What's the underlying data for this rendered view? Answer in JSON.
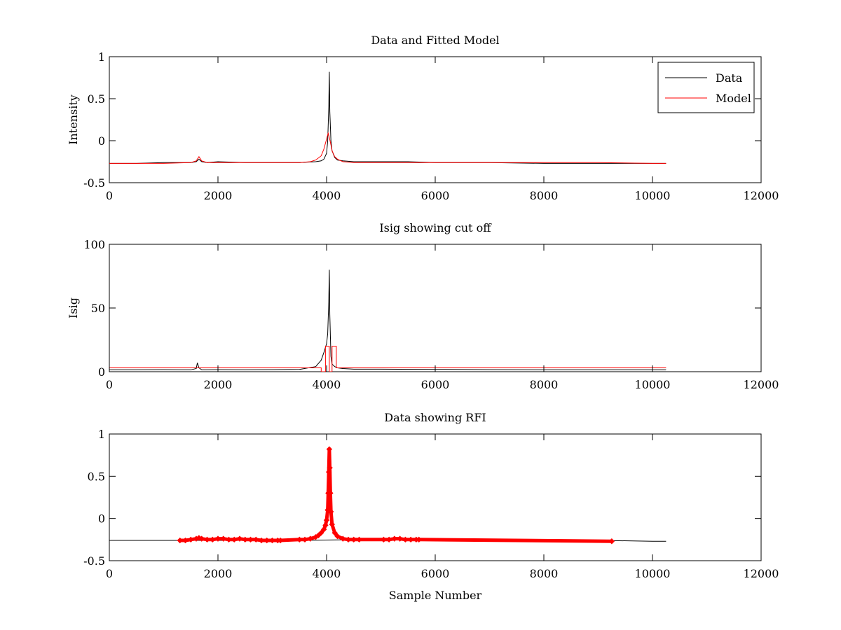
{
  "chart_data": [
    {
      "type": "line",
      "title": "Data and Fitted Model",
      "xlabel": "",
      "ylabel": "Intensity",
      "xlim": [
        0,
        12000
      ],
      "ylim": [
        -0.5,
        1
      ],
      "xticks": [
        0,
        2000,
        4000,
        6000,
        8000,
        10000,
        12000
      ],
      "yticks": [
        -0.5,
        0,
        0.5,
        1
      ],
      "xtick_labels": [
        "0",
        "2000",
        "4000",
        "6000",
        "8000",
        "10000",
        "12000"
      ],
      "ytick_labels": [
        "-0.5",
        "0",
        "0.5",
        "1"
      ],
      "grid": false,
      "legend": "top-right",
      "series": [
        {
          "name": "Data",
          "color": "#000000",
          "x": [
            0,
            500,
            1000,
            1500,
            1600,
            1650,
            1700,
            1800,
            2000,
            2500,
            3000,
            3500,
            3800,
            3900,
            3950,
            4000,
            4020,
            4040,
            4050,
            4060,
            4080,
            4100,
            4150,
            4200,
            4300,
            4500,
            5000,
            5500,
            6000,
            7000,
            8000,
            9000,
            10000,
            10250
          ],
          "y": [
            -0.27,
            -0.27,
            -0.26,
            -0.26,
            -0.25,
            -0.22,
            -0.25,
            -0.26,
            -0.25,
            -0.26,
            -0.26,
            -0.26,
            -0.25,
            -0.24,
            -0.22,
            -0.15,
            0.0,
            0.4,
            0.82,
            0.35,
            0.0,
            -0.12,
            -0.2,
            -0.23,
            -0.24,
            -0.25,
            -0.25,
            -0.25,
            -0.26,
            -0.26,
            -0.27,
            -0.27,
            -0.27,
            -0.27
          ]
        },
        {
          "name": "Model",
          "color": "#ff0000",
          "x": [
            0,
            500,
            1000,
            1500,
            1600,
            1650,
            1700,
            1800,
            2000,
            2500,
            3000,
            3500,
            3700,
            3800,
            3900,
            3950,
            4000,
            4030,
            4050,
            4080,
            4100,
            4150,
            4200,
            4300,
            4500,
            5000,
            5500,
            6000,
            7000,
            8000,
            9000,
            10000,
            10250
          ],
          "y": [
            -0.27,
            -0.27,
            -0.27,
            -0.26,
            -0.24,
            -0.19,
            -0.24,
            -0.26,
            -0.26,
            -0.26,
            -0.26,
            -0.26,
            -0.25,
            -0.23,
            -0.18,
            -0.1,
            0.02,
            0.09,
            0.04,
            -0.05,
            -0.12,
            -0.19,
            -0.22,
            -0.25,
            -0.26,
            -0.26,
            -0.26,
            -0.26,
            -0.26,
            -0.26,
            -0.26,
            -0.27,
            -0.27
          ]
        }
      ]
    },
    {
      "type": "line",
      "title": "Isig showing cut off",
      "xlabel": "",
      "ylabel": "Isig",
      "xlim": [
        0,
        12000
      ],
      "ylim": [
        0,
        100
      ],
      "xticks": [
        0,
        2000,
        4000,
        6000,
        8000,
        10000,
        12000
      ],
      "yticks": [
        0,
        50,
        100
      ],
      "xtick_labels": [
        "0",
        "2000",
        "4000",
        "6000",
        "8000",
        "10000",
        "12000"
      ],
      "ytick_labels": [
        "0",
        "50",
        "100"
      ],
      "grid": false,
      "series": [
        {
          "name": "",
          "color": "#000000",
          "x": [
            0,
            500,
            1000,
            1500,
            1600,
            1620,
            1650,
            1700,
            1800,
            2000,
            2500,
            3000,
            3500,
            3800,
            3900,
            3950,
            4000,
            4020,
            4040,
            4050,
            4060,
            4080,
            4100,
            4150,
            4200,
            4300,
            4500,
            5000,
            6000,
            7000,
            8000,
            9000,
            10000,
            10250
          ],
          "y": [
            1.5,
            1.5,
            1.6,
            1.5,
            2.5,
            7,
            3,
            1.5,
            1.5,
            1.6,
            1.5,
            1.6,
            1.8,
            4,
            9,
            15,
            22,
            30,
            55,
            80,
            45,
            12,
            6,
            4,
            3,
            2.5,
            2,
            2,
            1.8,
            1.6,
            1.5,
            1.5,
            1.5,
            1.5
          ]
        },
        {
          "name": "",
          "color": "#ff0000",
          "x": [
            0,
            3900,
            3900,
            3980,
            3980,
            4050,
            4050,
            4100,
            4100,
            4180,
            4180,
            10250
          ],
          "y": [
            3,
            3,
            0,
            0,
            20,
            20,
            0,
            0,
            20,
            20,
            3,
            3
          ]
        }
      ]
    },
    {
      "type": "scatter",
      "title": "Data showing RFI",
      "xlabel": "Sample Number",
      "ylabel": "",
      "xlim": [
        0,
        12000
      ],
      "ylim": [
        -0.5,
        1
      ],
      "xticks": [
        0,
        2000,
        4000,
        6000,
        8000,
        10000,
        12000
      ],
      "yticks": [
        -0.5,
        0,
        0.5,
        1
      ],
      "xtick_labels": [
        "0",
        "2000",
        "4000",
        "6000",
        "8000",
        "10000",
        "12000"
      ],
      "ytick_labels": [
        "-0.5",
        "0",
        "0.5",
        "1"
      ],
      "grid": false,
      "series": [
        {
          "name": "",
          "style": "line",
          "color": "#000000",
          "x": [
            0,
            1000,
            1300,
            3150,
            3500,
            4600,
            5050,
            5700,
            7000,
            8000,
            9000,
            10000,
            10250
          ],
          "y": [
            -0.26,
            -0.26,
            -0.26,
            -0.26,
            -0.26,
            -0.25,
            -0.25,
            -0.25,
            -0.26,
            -0.26,
            -0.26,
            -0.27,
            -0.27
          ]
        },
        {
          "name": "",
          "style": "markers",
          "color": "#ff0000",
          "x": [
            1300,
            1400,
            1500,
            1600,
            1650,
            1700,
            1800,
            1900,
            2000,
            2100,
            2200,
            2300,
            2400,
            2500,
            2600,
            2700,
            2800,
            2900,
            3000,
            3100,
            3150,
            3500,
            3600,
            3700,
            3800,
            3850,
            3900,
            3950,
            3980,
            4000,
            4020,
            4030,
            4040,
            4050,
            4060,
            4070,
            4080,
            4100,
            4150,
            4200,
            4300,
            4400,
            4500,
            4600,
            5050,
            5150,
            5250,
            5350,
            5450,
            5550,
            5650,
            5700,
            9250
          ],
          "y": [
            -0.26,
            -0.26,
            -0.25,
            -0.24,
            -0.23,
            -0.24,
            -0.25,
            -0.25,
            -0.24,
            -0.24,
            -0.25,
            -0.25,
            -0.24,
            -0.25,
            -0.25,
            -0.25,
            -0.26,
            -0.26,
            -0.26,
            -0.26,
            -0.26,
            -0.25,
            -0.25,
            -0.24,
            -0.22,
            -0.2,
            -0.17,
            -0.13,
            -0.08,
            -0.02,
            0.1,
            0.3,
            0.55,
            0.82,
            0.6,
            0.3,
            0.08,
            -0.07,
            -0.17,
            -0.21,
            -0.24,
            -0.25,
            -0.25,
            -0.25,
            -0.25,
            -0.25,
            -0.24,
            -0.24,
            -0.25,
            -0.25,
            -0.25,
            -0.25,
            -0.27
          ]
        }
      ]
    }
  ]
}
